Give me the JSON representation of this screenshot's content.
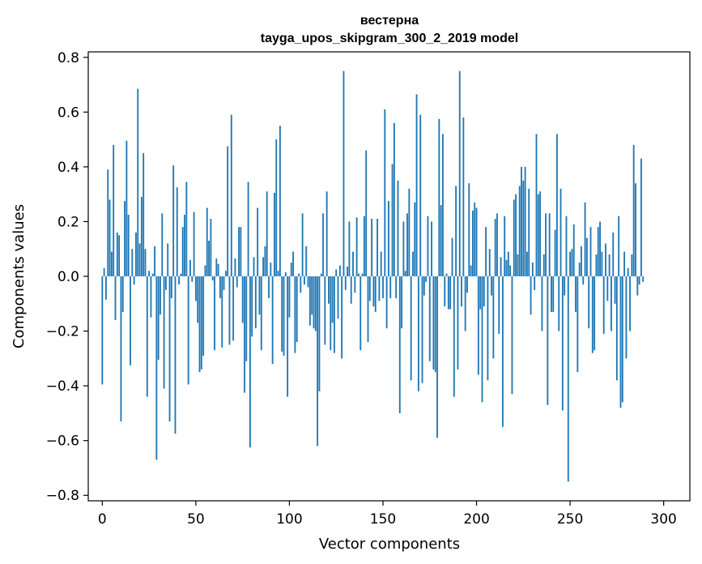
{
  "chart_data": {
    "type": "bar",
    "title": "вестерна",
    "subtitle": "tayga_upos_skipgram_300_2_2019 model",
    "xlabel": "Vector components",
    "ylabel": "Components values",
    "xlim": [
      -7.5,
      314
    ],
    "ylim": [
      -0.82,
      0.82
    ],
    "xticks": [
      0,
      50,
      100,
      150,
      200,
      250,
      300
    ],
    "yticks": [
      -0.8,
      -0.6,
      -0.4,
      -0.2,
      0.0,
      0.2,
      0.4,
      0.6,
      0.8
    ],
    "ytick_labels": [
      "−0.8",
      "−0.6",
      "−0.4",
      "−0.2",
      "0.0",
      "0.2",
      "0.4",
      "0.6",
      "0.8"
    ],
    "bar_color": "#1f77b4",
    "series": [
      {
        "name": "вестерна",
        "x_start": 0,
        "values": [
          -0.395,
          0.03,
          -0.085,
          0.39,
          0.28,
          0.09,
          0.48,
          -0.16,
          0.16,
          0.15,
          -0.53,
          -0.13,
          0.275,
          0.495,
          0.225,
          -0.325,
          0.1,
          -0.03,
          0.16,
          0.685,
          0.12,
          0.29,
          0.45,
          0.1,
          -0.44,
          0.02,
          -0.15,
          0.01,
          0.11,
          -0.67,
          -0.305,
          -0.14,
          0.23,
          -0.41,
          -0.05,
          0.12,
          -0.53,
          -0.08,
          0.405,
          -0.575,
          0.325,
          -0.03,
          0.01,
          0.18,
          0.225,
          0.345,
          -0.395,
          0.06,
          -0.02,
          0.235,
          -0.09,
          -0.17,
          -0.35,
          -0.34,
          -0.29,
          0.04,
          0.25,
          0.13,
          0.21,
          -0.015,
          -0.27,
          0.065,
          0.045,
          -0.08,
          -0.26,
          -0.05,
          0.02,
          0.475,
          -0.25,
          0.59,
          -0.235,
          0.065,
          -0.04,
          0.18,
          0.18,
          -0.17,
          -0.425,
          -0.31,
          0.345,
          -0.625,
          -0.22,
          0.07,
          -0.19,
          0.25,
          -0.14,
          -0.27,
          0.07,
          0.11,
          0.31,
          -0.08,
          0.05,
          -0.32,
          0.305,
          0.5,
          0.02,
          0.55,
          -0.275,
          -0.29,
          0.015,
          -0.44,
          -0.15,
          0.05,
          0.09,
          -0.28,
          -0.24,
          0.01,
          -0.06,
          0.23,
          -0.03,
          0.11,
          -0.04,
          -0.18,
          -0.14,
          -0.19,
          -0.2,
          -0.62,
          -0.42,
          0.01,
          0.23,
          -0.25,
          0.31,
          -0.1,
          -0.27,
          -0.17,
          -0.28,
          0.025,
          -0.155,
          0.04,
          -0.3,
          0.75,
          -0.05,
          0.035,
          0.2,
          -0.1,
          0.09,
          -0.06,
          0.215,
          0.01,
          -0.27,
          0.01,
          0.22,
          0.46,
          -0.24,
          -0.09,
          0.21,
          -0.11,
          -0.13,
          0.21,
          -0.09,
          0.09,
          -0.08,
          0.61,
          -0.19,
          0.275,
          -0.08,
          0.41,
          0.56,
          -0.08,
          0.35,
          -0.5,
          -0.19,
          0.2,
          0.02,
          0.23,
          0.32,
          -0.38,
          0.09,
          0.27,
          0.665,
          -0.42,
          0.59,
          -0.39,
          -0.07,
          -0.02,
          0.22,
          -0.31,
          0.2,
          -0.34,
          -0.35,
          -0.59,
          0.575,
          0.26,
          0.52,
          -0.11,
          0.01,
          -0.12,
          -0.12,
          0.14,
          -0.44,
          0.33,
          -0.34,
          0.75,
          -0.11,
          0.58,
          -0.2,
          -0.06,
          0.34,
          0.04,
          0.24,
          0.27,
          0.25,
          -0.36,
          -0.12,
          -0.46,
          -0.11,
          0.18,
          -0.38,
          0.1,
          -0.07,
          -0.3,
          0.21,
          0.23,
          -0.21,
          0.07,
          -0.55,
          0.22,
          0.06,
          0.09,
          0.04,
          -0.43,
          0.28,
          0.3,
          0.08,
          0.33,
          0.4,
          0.35,
          0.4,
          0.09,
          0.32,
          -0.14,
          0.05,
          -0.05,
          0.52,
          0.3,
          0.31,
          -0.2,
          0.08,
          0.23,
          -0.47,
          0.23,
          -0.13,
          -0.13,
          0.17,
          0.52,
          -0.2,
          0.32,
          -0.49,
          -0.07,
          0.22,
          -0.75,
          0.09,
          0.1,
          0.19,
          -0.13,
          -0.35,
          0.05,
          0.11,
          -0.03,
          0.27,
          0.14,
          -0.19,
          0.18,
          -0.28,
          -0.27,
          0.08,
          0.18,
          0.2,
          0.09,
          -0.21,
          0.12,
          -0.09,
          0.08,
          -0.2,
          0.16,
          -0.1,
          -0.38,
          0.22,
          -0.48,
          -0.46,
          0.09,
          -0.3,
          0.03,
          -0.2,
          0.08,
          0.48,
          0.34,
          -0.07,
          -0.03,
          0.43,
          -0.02
        ]
      }
    ]
  }
}
